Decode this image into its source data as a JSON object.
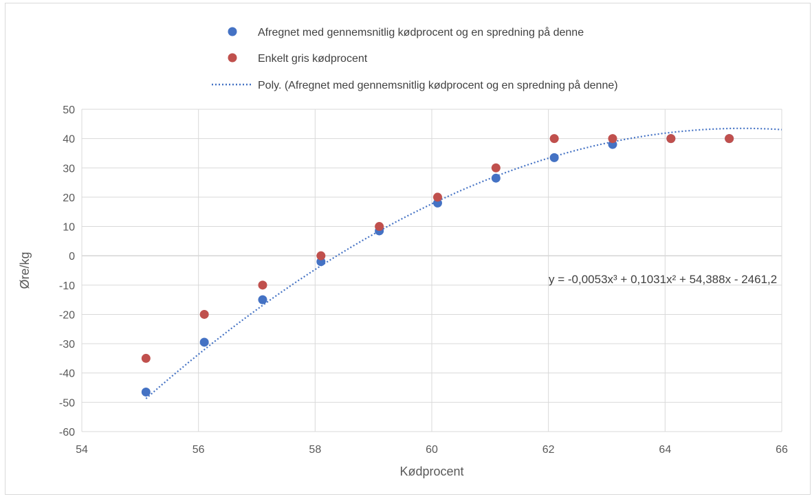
{
  "chart_data": {
    "type": "scatter",
    "title": "",
    "xlabel": "Kødprocent",
    "ylabel": "Øre/kg",
    "xlim": [
      54,
      66
    ],
    "ylim": [
      -60,
      50
    ],
    "x_ticks": [
      "54",
      "56",
      "58",
      "60",
      "62",
      "64",
      "66"
    ],
    "y_ticks": [
      "50",
      "40",
      "30",
      "20",
      "10",
      "0",
      "-10",
      "-20",
      "-30",
      "-40",
      "-50",
      "-60"
    ],
    "grid": true,
    "legend_position": "top",
    "series": [
      {
        "name": "Afregnet med gennemsnitlig kødprocent og en spredning på denne",
        "kind": "scatter",
        "color": "#4472c4",
        "x": [
          55.1,
          56.1,
          57.1,
          58.1,
          59.1,
          60.1,
          61.1,
          62.1,
          63.1,
          64.1,
          65.1
        ],
        "y": [
          -46.5,
          -29.5,
          -15,
          -2,
          8.5,
          18,
          26.5,
          33.5,
          38,
          40,
          40
        ]
      },
      {
        "name": "Enkelt gris kødprocent",
        "kind": "scatter",
        "color": "#c0504d",
        "x": [
          55.1,
          56.1,
          57.1,
          58.1,
          59.1,
          60.1,
          61.1,
          62.1,
          63.1,
          64.1,
          65.1
        ],
        "y": [
          -35,
          -20,
          -10,
          0,
          10,
          20,
          30,
          40,
          40,
          40,
          40
        ]
      },
      {
        "name": "Poly. (Afregnet med gennemsnitlig kødprocent og en spredning på denne)",
        "kind": "trendline",
        "color": "#4472c4",
        "x_range": [
          55.1,
          66
        ]
      }
    ],
    "annotations": [
      {
        "text": "y = -0,0053x³ + 0,1031x² + 54,388x - 2461,2"
      }
    ]
  }
}
